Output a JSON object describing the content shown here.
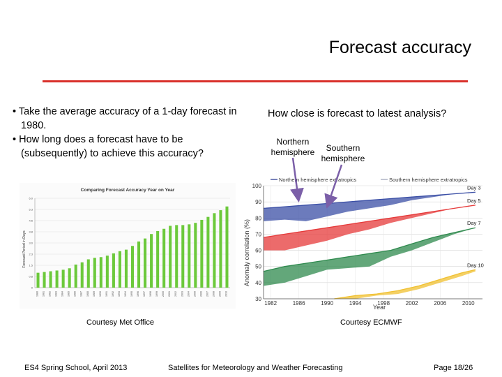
{
  "slide": {
    "title": "Forecast accuracy",
    "bullets": [
      "• Take the average accuracy of a 1-day forecast in 1980.",
      "• How long does a forecast have to be (subsequently) to achieve this accuracy?"
    ],
    "question": "How close is forecast to latest analysis?",
    "northern_label": "Northern hemisphere",
    "southern_label": "Southern hemisphere",
    "met_caption": "Courtesy Met Office",
    "ecmwf_caption": "Courtesy ECMWF",
    "footer": {
      "left": "ES4 Spring School, April 2013",
      "center": "Satellites for Meteorology and Weather Forecasting",
      "right": "Page 18/26"
    }
  },
  "chart_data": [
    {
      "type": "bar",
      "title": "Comparing Forecast Accuracy Year on Year",
      "ylabel": "Forecast Period in Days",
      "ylim": [
        0,
        6
      ],
      "yticks": [
        "0",
        "0.8",
        "1.5",
        "2.3",
        "3.0",
        "3.8",
        "4.5",
        "5.3",
        "6.0"
      ],
      "categories": [
        "1980",
        "1981",
        "1982",
        "1983",
        "1984",
        "1985",
        "1986",
        "1987",
        "1988",
        "1989",
        "1990",
        "1991",
        "1992",
        "1993",
        "1994",
        "1995",
        "1996",
        "1997",
        "1998",
        "1999",
        "2000",
        "2001",
        "2002",
        "2003",
        "2004",
        "2005",
        "2006",
        "2007",
        "2008",
        "2009",
        "2010"
      ],
      "values": [
        1.0,
        1.05,
        1.1,
        1.15,
        1.2,
        1.3,
        1.55,
        1.7,
        1.9,
        2.0,
        2.05,
        2.15,
        2.3,
        2.45,
        2.55,
        2.8,
        3.1,
        3.3,
        3.6,
        3.8,
        3.95,
        4.15,
        4.2,
        4.2,
        4.25,
        4.35,
        4.55,
        4.75,
        5.0,
        5.2,
        5.45
      ],
      "color": "#6cc93b"
    },
    {
      "type": "area",
      "ylabel": "Anomaly correlation (%)",
      "xlabel": "Year",
      "ylim": [
        30,
        100
      ],
      "xlim": [
        1981,
        2012
      ],
      "yticks": [
        30,
        40,
        50,
        60,
        70,
        80,
        90,
        100
      ],
      "xticks": [
        1982,
        1986,
        1990,
        1994,
        1998,
        2002,
        2006,
        2010
      ],
      "legend": [
        "Northern hemisphere extratropics",
        "Southern hemisphere extratropics"
      ],
      "series": [
        {
          "name": "Day 3",
          "color": "#3b4fa6",
          "x": [
            1981,
            1984,
            1987,
            1990,
            1993,
            1996,
            1999,
            2002,
            2005,
            2008,
            2011
          ],
          "north": [
            86,
            87,
            88,
            89,
            90,
            91,
            92,
            93,
            94,
            95,
            96
          ],
          "south": [
            78,
            79,
            78,
            81,
            84,
            86,
            88,
            91,
            93,
            95,
            96
          ]
        },
        {
          "name": "Day 5",
          "color": "#e63a3a",
          "x": [
            1981,
            1984,
            1987,
            1990,
            1993,
            1996,
            1999,
            2002,
            2005,
            2008,
            2011
          ],
          "north": [
            68,
            70,
            72,
            74,
            76,
            78,
            80,
            82,
            84,
            86,
            88
          ],
          "south": [
            60,
            60,
            63,
            66,
            70,
            73,
            77,
            80,
            83,
            86,
            88
          ]
        },
        {
          "name": "Day 7",
          "color": "#2f8a4e",
          "x": [
            1981,
            1984,
            1987,
            1990,
            1993,
            1996,
            1999,
            2002,
            2005,
            2008,
            2011
          ],
          "north": [
            47,
            50,
            52,
            54,
            56,
            58,
            60,
            64,
            68,
            71,
            74
          ],
          "south": [
            38,
            40,
            44,
            48,
            49,
            50,
            56,
            60,
            65,
            70,
            74
          ]
        },
        {
          "name": "Day 10",
          "color": "#f0c030",
          "x": [
            1991,
            1994,
            1997,
            2000,
            2003,
            2006,
            2009,
            2011
          ],
          "north": [
            30,
            32,
            33,
            35,
            38,
            42,
            46,
            48
          ],
          "south": [
            30,
            30,
            32,
            33,
            36,
            40,
            44,
            47
          ]
        }
      ]
    }
  ]
}
